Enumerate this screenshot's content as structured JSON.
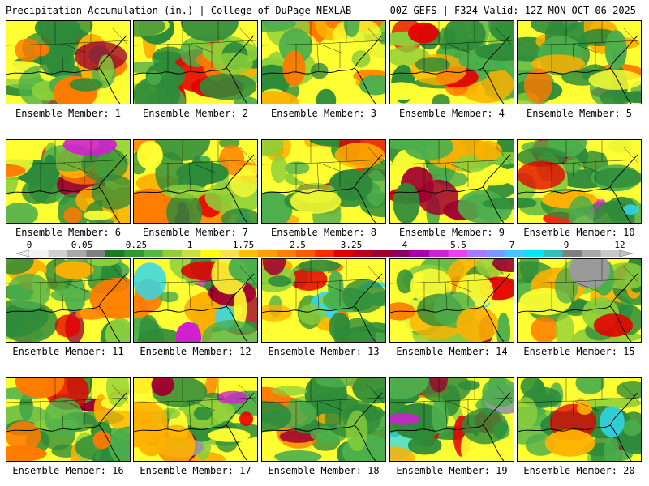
{
  "header": {
    "left_title": "Precipitation Accumulation (in.) | College of DuPage NEXLAB",
    "right_title": "00Z GEFS | F324 Valid: 12Z MON OCT 06 2025"
  },
  "panel_label_prefix": "Ensemble Member: ",
  "members": [
    1,
    2,
    3,
    4,
    5,
    6,
    7,
    8,
    9,
    10,
    11,
    12,
    13,
    14,
    15,
    16,
    17,
    18,
    19,
    20
  ],
  "colorbar": {
    "tick_labels": [
      "0",
      "0.05",
      "0.25",
      "1",
      "1.75",
      "2.5",
      "3.25",
      "4",
      "5.5",
      "7",
      "9",
      "12"
    ],
    "colors": [
      "#f2f2f2",
      "#cfcfcf",
      "#a9a9a9",
      "#808080",
      "#1f7a1f",
      "#2e9a2e",
      "#55b545",
      "#8ccf3a",
      "#c8e040",
      "#ffff00",
      "#ffe04a",
      "#ffc000",
      "#ffa000",
      "#ff7f00",
      "#ff5a00",
      "#ff2a00",
      "#e00000",
      "#c00018",
      "#a00030",
      "#880060",
      "#aa00aa",
      "#d020d0",
      "#ee40ee",
      "#a878ff",
      "#7a9aff",
      "#40c8ff",
      "#00e8f0",
      "#30c0c0",
      "#7f7f7f",
      "#a8a8a8",
      "#c8c8c8"
    ]
  },
  "map_colors": {
    "dark_green": "#2e8b3a",
    "mid_green": "#4caf4c",
    "light_green": "#8ccf3a",
    "yellow": "#ffff33",
    "orange": "#ffb000",
    "dark_orange": "#ff7a00",
    "red": "#e60000",
    "dark_red": "#a00030",
    "magenta": "#d020d0",
    "cyan": "#30d8f0",
    "gray": "#9a9a9a"
  }
}
